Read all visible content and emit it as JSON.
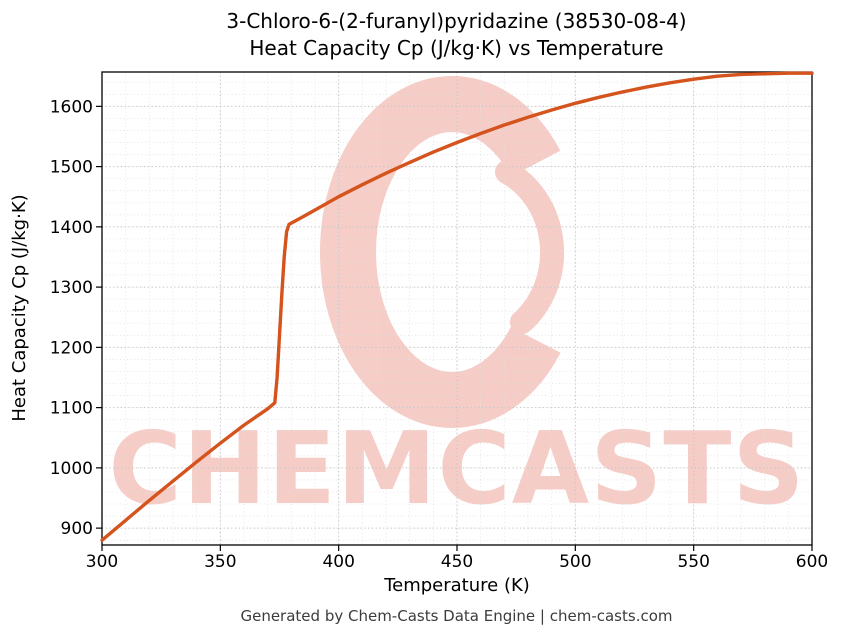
{
  "title": {
    "line1": "3-Chloro-6-(2-furanyl)pyridazine (38530-08-4)",
    "line2": "Heat Capacity Cp (J/kg·K) vs Temperature"
  },
  "footer": "Generated by Chem-Casts Data Engine | chem-casts.com",
  "watermark": {
    "text": "CHEMCASTS",
    "color": "#dd4b35"
  },
  "chart_data": {
    "type": "line",
    "title": "3-Chloro-6-(2-furanyl)pyridazine (38530-08-4) Heat Capacity Cp (J/kg·K) vs Temperature",
    "xlabel": "Temperature (K)",
    "ylabel": "Heat Capacity Cp (J/kg·K)",
    "xlim": [
      300,
      600
    ],
    "ylim": [
      872,
      1657
    ],
    "xticks": [
      300,
      350,
      400,
      450,
      500,
      550,
      600
    ],
    "yticks": [
      900,
      1000,
      1100,
      1200,
      1300,
      1400,
      1500,
      1600
    ],
    "grid": true,
    "minor_step_x": 10,
    "minor_step_y": 20,
    "legend": "none",
    "line_color": "#d5531c",
    "series": [
      {
        "name": "Heat Capacity Cp",
        "x": [
          300,
          310,
          320,
          330,
          340,
          350,
          360,
          370,
          373,
          374,
          375,
          376,
          377,
          378,
          379,
          385,
          390,
          400,
          410,
          420,
          430,
          440,
          450,
          460,
          470,
          480,
          490,
          500,
          510,
          520,
          530,
          540,
          550,
          560,
          570,
          580,
          590,
          600
        ],
        "y": [
          880,
          913,
          946,
          978,
          1010,
          1041,
          1071,
          1098,
          1108,
          1150,
          1220,
          1290,
          1350,
          1392,
          1404,
          1417,
          1428,
          1450,
          1470,
          1489,
          1507,
          1524,
          1540,
          1555,
          1569,
          1582,
          1594,
          1605,
          1615,
          1624,
          1632,
          1639,
          1645,
          1650,
          1653,
          1654,
          1655,
          1655
        ]
      }
    ]
  }
}
